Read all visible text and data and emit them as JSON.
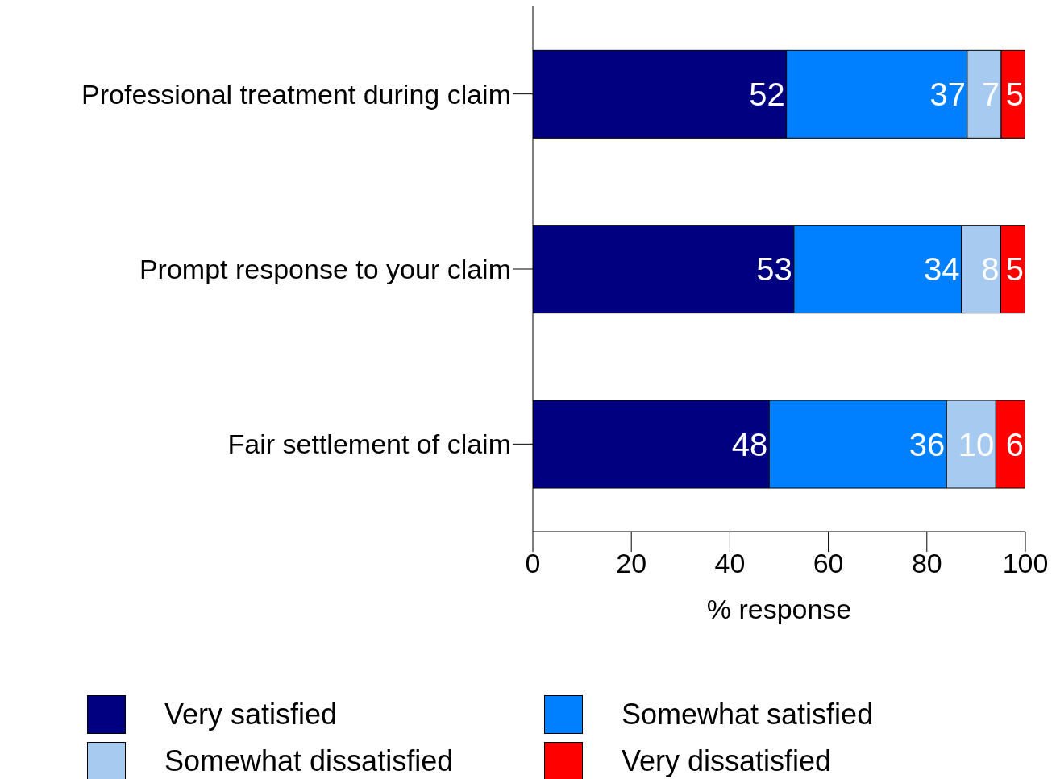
{
  "chart_data": {
    "type": "bar",
    "orientation": "horizontal",
    "stacked": true,
    "categories": [
      "Professional treatment during claim",
      "Prompt response to your claim",
      "Fair settlement of claim"
    ],
    "series": [
      {
        "name": "Very satisfied",
        "color": "#000080",
        "values": [
          51.5,
          53,
          48
        ],
        "value_labels": [
          "52",
          "53",
          "48"
        ]
      },
      {
        "name": "Somewhat satisfied",
        "color": "#0080ff",
        "values": [
          36.7,
          34,
          36
        ],
        "value_labels": [
          "37",
          "34",
          "36"
        ]
      },
      {
        "name": "Somewhat dissatisfied",
        "color": "#a6caf0",
        "values": [
          6.9,
          8,
          10
        ],
        "value_labels": [
          "7",
          "8",
          "10"
        ]
      },
      {
        "name": "Very dissatisfied",
        "color": "#ff0000",
        "values": [
          4.9,
          5,
          6
        ],
        "value_labels": [
          "5",
          "5",
          "6"
        ]
      }
    ],
    "xlim": [
      0,
      100
    ],
    "xticks": [
      0,
      20,
      40,
      60,
      80,
      100
    ],
    "xlabel": "% response",
    "grid": false,
    "legend": "bottom"
  }
}
